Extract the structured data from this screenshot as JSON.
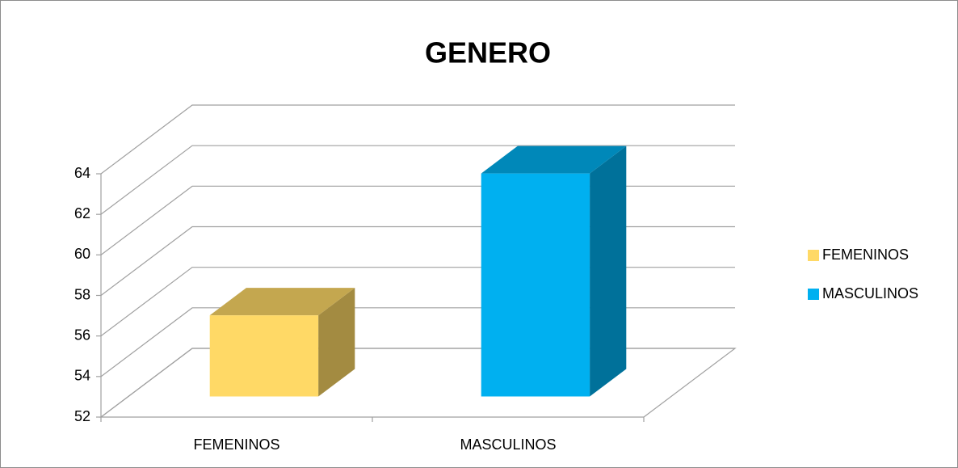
{
  "chart_data": {
    "type": "bar3d",
    "title": "GENERO",
    "categories": [
      "FEMENINOS",
      "MASCULINOS"
    ],
    "values": [
      56,
      63
    ],
    "colors": [
      "#ffd966",
      "#00b0f0"
    ],
    "ylim": [
      52,
      64
    ],
    "yticks": [
      52,
      54,
      56,
      58,
      60,
      62,
      64
    ],
    "grid": true,
    "legend": "right"
  }
}
